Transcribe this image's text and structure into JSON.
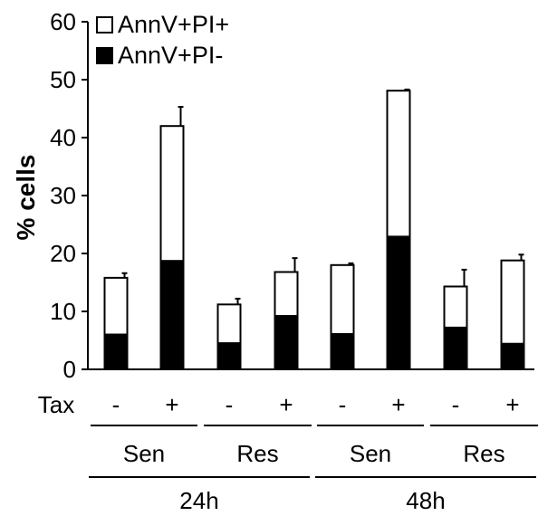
{
  "chart_data": {
    "type": "bar",
    "stacked": true,
    "ylabel": "% cells",
    "ylim": [
      0,
      60
    ],
    "yticks": [
      0,
      10,
      20,
      30,
      40,
      50,
      60
    ],
    "legend_position": "top-left",
    "categories": [
      "-",
      "+",
      "-",
      "+",
      "-",
      "+",
      "-",
      "+"
    ],
    "series": [
      {
        "name": "AnnV+PI-",
        "fill": "#000000",
        "values": [
          6.0,
          18.7,
          4.5,
          9.2,
          6.1,
          22.9,
          7.2,
          4.4
        ]
      },
      {
        "name": "AnnV+PI+",
        "fill": "#ffffff",
        "values": [
          9.8,
          23.3,
          6.7,
          7.6,
          11.9,
          25.2,
          7.1,
          14.4
        ]
      }
    ],
    "totals": [
      15.8,
      42.0,
      11.2,
      16.8,
      18.0,
      48.1,
      14.3,
      18.8
    ],
    "error_bars": [
      0.8,
      3.3,
      1.0,
      2.4,
      0.3,
      0.2,
      2.9,
      1.0
    ],
    "group_rows": {
      "treatment_label": "Tax",
      "cell_lines": [
        {
          "label": "Sen",
          "from": 0,
          "to": 1
        },
        {
          "label": "Res",
          "from": 2,
          "to": 3
        },
        {
          "label": "Sen",
          "from": 4,
          "to": 5
        },
        {
          "label": "Res",
          "from": 6,
          "to": 7
        }
      ],
      "timepoints": [
        {
          "label": "24h",
          "from": 0,
          "to": 3
        },
        {
          "label": "48h",
          "from": 4,
          "to": 7
        }
      ]
    }
  }
}
